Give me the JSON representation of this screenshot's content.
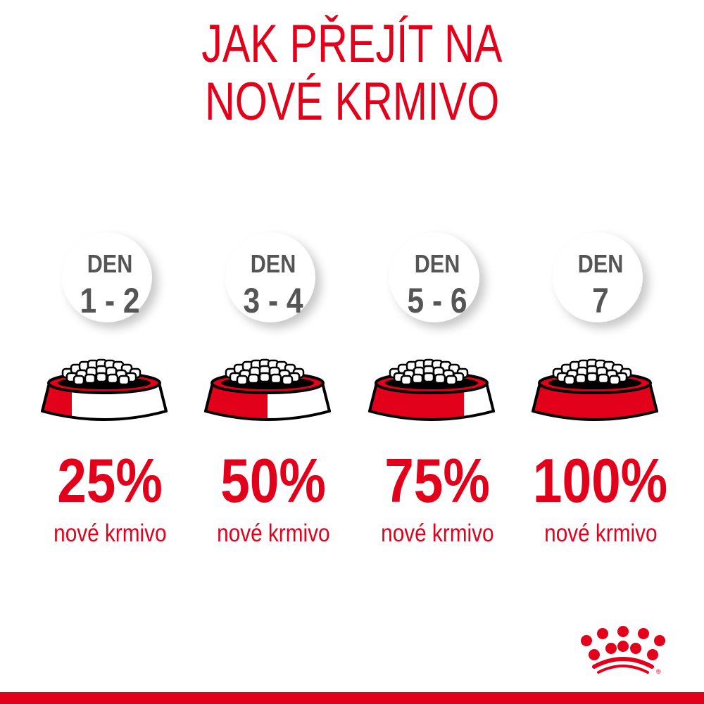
{
  "title": {
    "line1": "JAK PŘEJÍT NA",
    "line2": "NOVÉ KRMIVO"
  },
  "colors": {
    "brand_red": "#e2001a",
    "day_text": "#555555"
  },
  "steps": [
    {
      "den": "DEN",
      "days": "1 - 2",
      "percent": "25%",
      "new_food_fraction": 0.25,
      "label": "nové krmivo"
    },
    {
      "den": "DEN",
      "days": "3 - 4",
      "percent": "50%",
      "new_food_fraction": 0.5,
      "label": "nové krmivo"
    },
    {
      "den": "DEN",
      "days": "5 - 6",
      "percent": "75%",
      "new_food_fraction": 0.75,
      "label": "nové krmivo"
    },
    {
      "den": "DEN",
      "days": "7",
      "percent": "100%",
      "new_food_fraction": 1.0,
      "label": "nové krmivo"
    }
  ],
  "logo": {
    "name": "royal-canin-crown-logo",
    "text": "®"
  }
}
